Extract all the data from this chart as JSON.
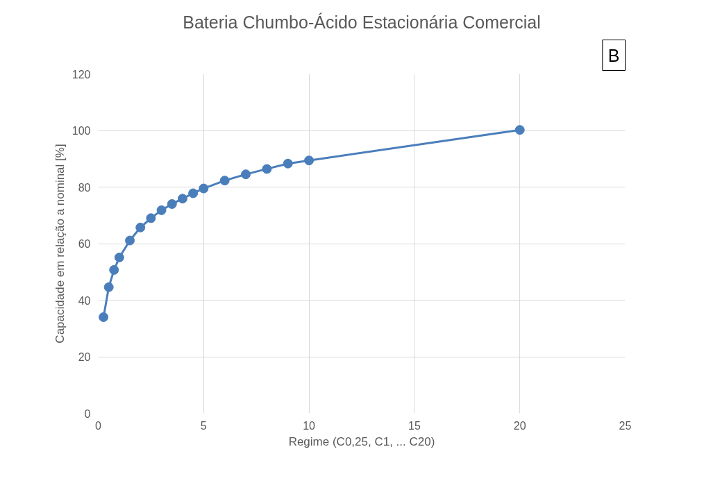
{
  "chart_data": {
    "type": "line",
    "title": "Bateria Chumbo-Ácido Estacionária Comercial",
    "xlabel": "Regime (C0,25, C1, ... C20)",
    "ylabel": "Capacidade em relação a nominal [%]",
    "x": [
      0.25,
      0.5,
      0.75,
      1,
      1.5,
      2,
      2.5,
      3,
      3.5,
      4,
      4.5,
      5,
      6,
      7,
      8,
      9,
      10,
      20
    ],
    "series": [
      {
        "color": "#4a7ebb",
        "values": [
          34,
          44.6,
          50.7,
          55.1,
          61.1,
          65.7,
          69,
          71.8,
          74,
          75.9,
          77.8,
          79.5,
          82.3,
          84.5,
          86.4,
          88.3,
          89.4,
          100.2
        ]
      }
    ],
    "xlim": [
      0,
      25
    ],
    "xticks": [
      0,
      5,
      10,
      15,
      20,
      25
    ],
    "ylim": [
      0,
      120
    ],
    "yticks": [
      0,
      20,
      40,
      60,
      80,
      100,
      120
    ],
    "grid": true,
    "marker": "circle",
    "line_style": "solid",
    "annotations": [
      "B"
    ]
  }
}
